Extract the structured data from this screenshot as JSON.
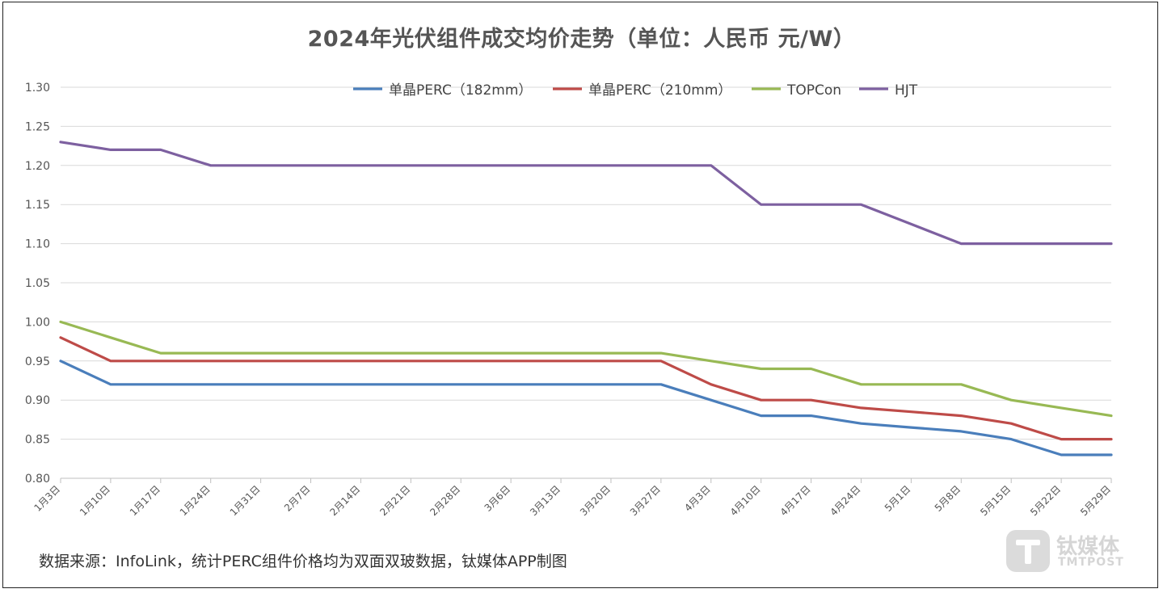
{
  "chart_data": {
    "type": "line",
    "title": "2024年光伏组件成交均价走势（单位：人民币 元/W）",
    "xlabel": "",
    "ylabel": "",
    "categories": [
      "1月3日",
      "1月10日",
      "1月17日",
      "1月24日",
      "1月31日",
      "2月7日",
      "2月14日",
      "2月21日",
      "2月28日",
      "3月6日",
      "3月13日",
      "3月20日",
      "3月27日",
      "4月3日",
      "4月10日",
      "4月17日",
      "4月24日",
      "5月1日",
      "5月8日",
      "5月15日",
      "5月22日",
      "5月29日"
    ],
    "ylim": [
      0.8,
      1.3
    ],
    "yticks": [
      "0.80",
      "0.85",
      "0.90",
      "0.95",
      "1.00",
      "1.05",
      "1.10",
      "1.15",
      "1.20",
      "1.25",
      "1.30"
    ],
    "grid": true,
    "legend_position": "top",
    "series": [
      {
        "name": "单晶PERC（182mm）",
        "color": "#4a7ebb",
        "values": [
          0.95,
          0.92,
          0.92,
          0.92,
          0.92,
          0.92,
          0.92,
          0.92,
          0.92,
          0.92,
          0.92,
          0.92,
          0.92,
          0.9,
          0.88,
          0.88,
          0.87,
          0.865,
          0.86,
          0.85,
          0.83,
          0.83
        ]
      },
      {
        "name": "单晶PERC（210mm）",
        "color": "#be4b48",
        "values": [
          0.98,
          0.95,
          0.95,
          0.95,
          0.95,
          0.95,
          0.95,
          0.95,
          0.95,
          0.95,
          0.95,
          0.95,
          0.95,
          0.92,
          0.9,
          0.9,
          0.89,
          0.885,
          0.88,
          0.87,
          0.85,
          0.85
        ]
      },
      {
        "name": "TOPCon",
        "color": "#98b954",
        "values": [
          1.0,
          0.98,
          0.96,
          0.96,
          0.96,
          0.96,
          0.96,
          0.96,
          0.96,
          0.96,
          0.96,
          0.96,
          0.96,
          0.95,
          0.94,
          0.94,
          0.92,
          0.92,
          0.92,
          0.9,
          0.89,
          0.88
        ]
      },
      {
        "name": "HJT",
        "color": "#7d60a0",
        "values": [
          1.23,
          1.22,
          1.22,
          1.2,
          1.2,
          1.2,
          1.2,
          1.2,
          1.2,
          1.2,
          1.2,
          1.2,
          1.2,
          1.2,
          1.15,
          1.15,
          1.15,
          1.125,
          1.1,
          1.1,
          1.1,
          1.1
        ]
      }
    ]
  },
  "footer": {
    "source_note": "数据来源：InfoLink，统计PERC组件价格均为双面双玻数据，钛媒体APP制图"
  },
  "watermark": {
    "name": "钛媒体",
    "subtitle": "TMTPOST"
  }
}
